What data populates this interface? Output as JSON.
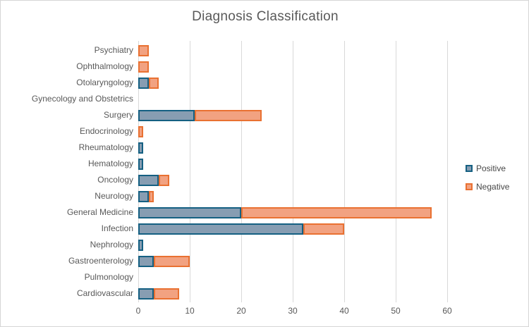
{
  "chart_data": {
    "type": "bar",
    "orientation": "horizontal",
    "stacked": true,
    "title": "Diagnosis Classification",
    "categories": [
      "Psychiatry",
      "Ophthalmology",
      "Otolaryngology",
      "Gynecology and Obstetrics",
      "Surgery",
      "Endocrinology",
      "Rheumatology",
      "Hematology",
      "Oncology",
      "Neurology",
      "General Medicine",
      "Infection",
      "Nephrology",
      "Gastroenterology",
      "Pulmonology",
      "Cardiovascular"
    ],
    "series": [
      {
        "name": "Positive",
        "values": [
          0,
          0,
          2,
          0,
          11,
          0,
          1,
          1,
          4,
          2,
          20,
          32,
          1,
          3,
          0,
          3
        ],
        "fill_color": "#879db2",
        "border_color": "#156082"
      },
      {
        "name": "Negative",
        "values": [
          2,
          2,
          2,
          0,
          13,
          1,
          0,
          0,
          2,
          1,
          37,
          8,
          0,
          7,
          0,
          5
        ],
        "fill_color": "#f2a281",
        "border_color": "#e97132"
      }
    ],
    "x_axis": {
      "min": 0,
      "max": 62,
      "ticks": [
        0,
        10,
        20,
        30,
        40,
        50,
        60
      ]
    },
    "grid": true,
    "legend": {
      "position": "right",
      "entries": [
        "Positive",
        "Negative"
      ]
    },
    "style": {
      "grid_color": "#d9d9d9",
      "title_color": "#595959",
      "label_color": "#595959"
    }
  }
}
